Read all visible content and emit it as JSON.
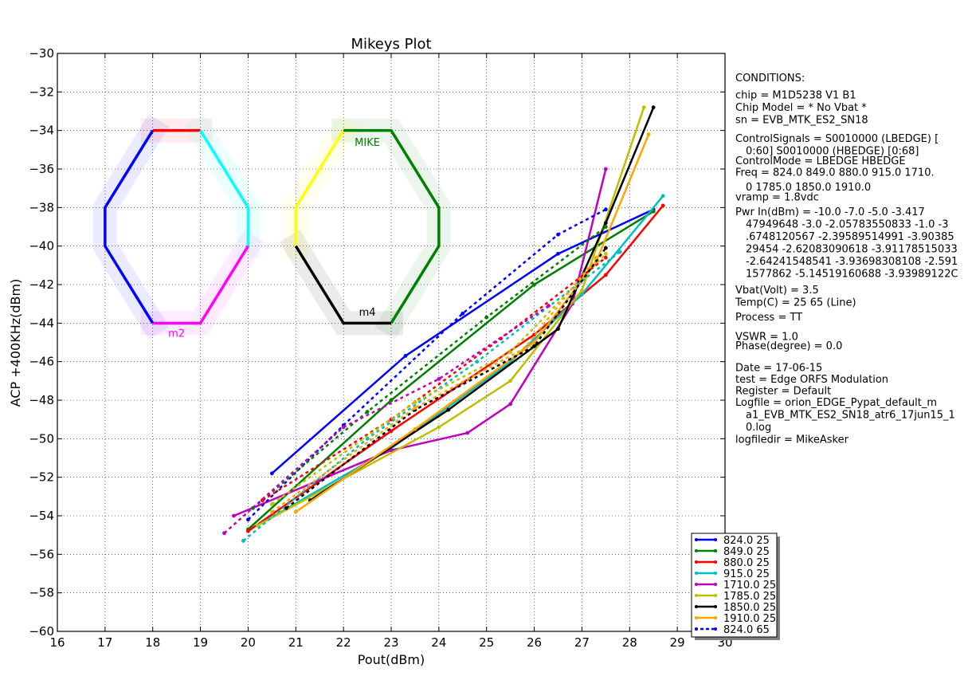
{
  "chart_data": {
    "type": "line",
    "title": "Mikeys Plot",
    "xlabel": "Pout(dBm)",
    "ylabel": "ACP +400KHz(dBm)",
    "xlim": [
      16,
      30
    ],
    "ylim": [
      -60,
      -30
    ],
    "xticks": [
      16,
      17,
      18,
      19,
      20,
      21,
      22,
      23,
      24,
      25,
      26,
      27,
      28,
      29,
      30
    ],
    "xtick_labels": [
      "16",
      "17",
      "18",
      "19",
      "20",
      "21",
      "22",
      "23",
      "24",
      "25",
      "26",
      "27",
      "28",
      "29",
      "30"
    ],
    "yticks": [
      -30,
      -32,
      -34,
      -36,
      -38,
      -40,
      -42,
      -44,
      -46,
      -48,
      -50,
      -52,
      -54,
      -56,
      -58,
      -60
    ],
    "ytick_labels": [
      "−30",
      "−32",
      "−34",
      "−36",
      "−38",
      "−40",
      "−42",
      "−44",
      "−46",
      "−48",
      "−50",
      "−52",
      "−54",
      "−56",
      "−58",
      "−60"
    ],
    "grid": true,
    "legend_position": "bottom-right",
    "series": [
      {
        "name": "824.0 25",
        "color": "#0000ff",
        "style": "solid",
        "x": [
          20.5,
          23.3,
          26.5,
          28.5
        ],
        "y": [
          -51.8,
          -45.7,
          -40.4,
          -38.1
        ]
      },
      {
        "name": "849.0 25",
        "color": "#008000",
        "style": "solid",
        "x": [
          20.0,
          23.0,
          26.0,
          28.5
        ],
        "y": [
          -54.7,
          -48.0,
          -42.0,
          -38.2
        ]
      },
      {
        "name": "880.0 25",
        "color": "#ff0000",
        "style": "solid",
        "x": [
          20.0,
          23.0,
          26.0,
          27.5,
          28.7
        ],
        "y": [
          -54.8,
          -49.6,
          -44.6,
          -41.5,
          -37.9
        ]
      },
      {
        "name": "915.0 25",
        "color": "#00bfbf",
        "style": "solid",
        "x": [
          20.2,
          23.0,
          25.5,
          27.0,
          28.7
        ],
        "y": [
          -54.5,
          -50.5,
          -46.0,
          -42.5,
          -37.4
        ]
      },
      {
        "name": "1710.0 25",
        "color": "#bf00bf",
        "style": "solid",
        "x": [
          19.7,
          23.0,
          24.6,
          25.5,
          26.8,
          27.5
        ],
        "y": [
          -54.0,
          -50.6,
          -49.7,
          -48.2,
          -43.0,
          -36.0
        ]
      },
      {
        "name": "1785.0 25",
        "color": "#bfbf00",
        "style": "solid",
        "x": [
          20.2,
          24.0,
          25.5,
          27.0,
          28.3
        ],
        "y": [
          -54.5,
          -49.4,
          -47.0,
          -42.3,
          -32.8
        ]
      },
      {
        "name": "1850.0 25",
        "color": "#000000",
        "style": "solid",
        "x": [
          21.3,
          24.2,
          26.5,
          27.5,
          28.5
        ],
        "y": [
          -53.2,
          -48.5,
          -44.3,
          -38.8,
          -32.8
        ]
      },
      {
        "name": "1910.0 25",
        "color": "#ffa500",
        "style": "solid",
        "x": [
          21.0,
          23.5,
          26.0,
          27.3,
          28.4
        ],
        "y": [
          -53.8,
          -49.5,
          -45.0,
          -40.8,
          -34.2
        ]
      },
      {
        "name": "824.0 65",
        "color": "#0000ff",
        "style": "dashed",
        "x": [
          20.0,
          22.0,
          24.5,
          26.5,
          27.5
        ],
        "y": [
          -54.2,
          -49.3,
          -43.5,
          -39.4,
          -38.1
        ]
      },
      {
        "name": "",
        "color": "#008000",
        "style": "dashed",
        "x": [
          20.1,
          22.5,
          25.0,
          27.5
        ],
        "y": [
          -53.6,
          -48.6,
          -43.7,
          -39.0
        ]
      },
      {
        "name": "",
        "color": "#ff0000",
        "style": "dashed",
        "x": [
          20.3,
          23.0,
          25.3,
          27.5
        ],
        "y": [
          -53.2,
          -49.0,
          -44.8,
          -40.6
        ]
      },
      {
        "name": "",
        "color": "#00bfbf",
        "style": "dashed",
        "x": [
          19.9,
          22.5,
          24.8,
          27.8
        ],
        "y": [
          -55.3,
          -50.0,
          -46.0,
          -40.3
        ]
      },
      {
        "name": "",
        "color": "#bf00bf",
        "style": "dashed",
        "x": [
          19.5,
          22.0,
          24.0,
          26.3
        ],
        "y": [
          -54.9,
          -49.4,
          -46.9,
          -43.1
        ]
      },
      {
        "name": "",
        "color": "#bfbf00",
        "style": "dashed",
        "x": [
          20.5,
          23.5,
          25.5,
          27.5
        ],
        "y": [
          -53.4,
          -48.1,
          -45.5,
          -40.4
        ]
      },
      {
        "name": "",
        "color": "#000000",
        "style": "dashed",
        "x": [
          20.8,
          23.5,
          26.0,
          27.5
        ],
        "y": [
          -53.6,
          -48.5,
          -45.2,
          -40.1
        ]
      },
      {
        "name": "",
        "color": "#ffa500",
        "style": "dashed",
        "x": [
          20.5,
          23.5,
          25.8,
          27.3
        ],
        "y": [
          -53.8,
          -48.4,
          -45.3,
          -40.6
        ]
      }
    ],
    "octagon_left": {
      "labels": [
        {
          "text": "m2",
          "color": "#ff00ff",
          "x": 18.5,
          "y": -44.5
        }
      ],
      "segments": [
        {
          "color": "#ff0000",
          "x": [
            18,
            19
          ],
          "y": [
            -34,
            -34
          ],
          "shadow": true
        },
        {
          "color": "#00ffff",
          "x": [
            19,
            20,
            20
          ],
          "y": [
            -34,
            -38,
            -40
          ],
          "shadow": true
        },
        {
          "color": "#ff00ff",
          "x": [
            20,
            19,
            18
          ],
          "y": [
            -40,
            -44,
            -44
          ],
          "shadow": true
        },
        {
          "color": "#0000ff",
          "x": [
            18,
            17,
            17,
            18
          ],
          "y": [
            -44,
            -40,
            -38,
            -34
          ],
          "shadow": true
        }
      ]
    },
    "octagon_right": {
      "labels": [
        {
          "text": "MIKE",
          "color": "#008000",
          "x": 22.5,
          "y": -34.6
        },
        {
          "text": "m4",
          "color": "#000000",
          "x": 22.5,
          "y": -43.4
        }
      ],
      "segments": [
        {
          "color": "#ffff00",
          "x": [
            21,
            21,
            22
          ],
          "y": [
            -40,
            -38,
            -34
          ],
          "shadow": true
        },
        {
          "color": "#008000",
          "x": [
            22,
            23,
            24,
            24,
            23
          ],
          "y": [
            -34,
            -34,
            -38,
            -40,
            -44
          ],
          "shadow": true
        },
        {
          "color": "#000000",
          "x": [
            23,
            22,
            21
          ],
          "y": [
            -44,
            -44,
            -40
          ],
          "shadow": true
        }
      ]
    }
  },
  "conditions": [
    {
      "text": "CONDITIONS:",
      "indent": false,
      "gap": 0
    },
    {
      "text": "chip = M1D5238 V1 B1",
      "indent": false,
      "gap": 6
    },
    {
      "text": "Chip Model = * No Vbat *",
      "indent": false,
      "gap": 0
    },
    {
      "text": "sn = EVB_MTK_ES2_SN18",
      "indent": false,
      "gap": 0
    },
    {
      "text": "ControlSignals = S0010000 (LBEDGE) [",
      "indent": false,
      "gap": 8
    },
    {
      "text": "0:60] S0010000 (HBEDGE)   [0:68]",
      "indent": true,
      "gap": 0
    },
    {
      "text": "ControlMode = LBEDGE HBEDGE",
      "indent": false,
      "gap": -3
    },
    {
      "text": "Freq = 824.0 849.0 880.0 915.0 1710.",
      "indent": false,
      "gap": -1
    },
    {
      "text": "0 1785.0 1850.0 1910.0",
      "indent": true,
      "gap": 3
    },
    {
      "text": "vramp = 1.8vdc",
      "indent": false,
      "gap": -3
    },
    {
      "text": "Pwr In(dBm) = -10.0 -7.0 -5.0 -3.417",
      "indent": false,
      "gap": 3
    },
    {
      "text": "47949648 -3.0 -2.05783550833 -1.0 -3",
      "indent": true,
      "gap": 0
    },
    {
      "text": ".6748120567 -2.39589514991 -3.90385",
      "indent": true,
      "gap": 0
    },
    {
      "text": "29454 -2.62083090618 -3.91178515033",
      "indent": true,
      "gap": 0
    },
    {
      "text": "-2.64241548541 -3.93698308108 -2.591",
      "indent": true,
      "gap": 0
    },
    {
      "text": "1577862 -5.14519160688 -3.93989122C",
      "indent": true,
      "gap": 0
    },
    {
      "text": "Vbat(Volt) = 3.5",
      "indent": false,
      "gap": 5
    },
    {
      "text": "Temp(C) = 25 65 (Line)",
      "indent": false,
      "gap": 0
    },
    {
      "text": "Process = TT",
      "indent": false,
      "gap": 3
    },
    {
      "text": "VSWR = 1.0",
      "indent": false,
      "gap": 9
    },
    {
      "text": "Phase(degree) = 0.0",
      "indent": false,
      "gap": -4
    },
    {
      "text": "Date = 17-06-15",
      "indent": false,
      "gap": 12
    },
    {
      "text": "test = Edge ORFS Modulation",
      "indent": false,
      "gap": -1
    },
    {
      "text": "Register = Default",
      "indent": false,
      "gap": -1
    },
    {
      "text": "Logfile = orion_EDGE_Pypat_default_m",
      "indent": false,
      "gap": -1
    },
    {
      "text": "a1_EVB_MTK_ES2_SN18_atr6_17jun15_1",
      "indent": true,
      "gap": 0
    },
    {
      "text": "0.log",
      "indent": true,
      "gap": 0
    },
    {
      "text": "logfiledir = MikeAsker",
      "indent": false,
      "gap": 0
    }
  ]
}
